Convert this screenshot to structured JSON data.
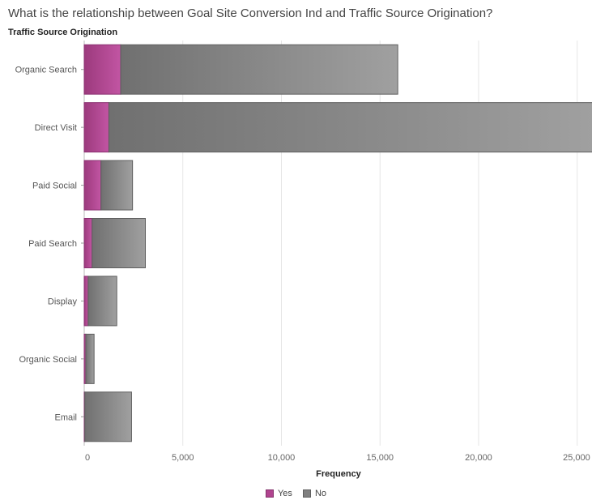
{
  "chart_data": {
    "type": "bar",
    "orientation": "horizontal",
    "stacked": true,
    "title": "What is the relationship between Goal Site Conversion Ind and Traffic Source Origination?",
    "ylabel": "Traffic Source Origination",
    "xlabel": "Frequency",
    "categories": [
      "Organic Search",
      "Direct Visit",
      "Paid Social",
      "Paid Search",
      "Display",
      "Organic Social",
      "Email"
    ],
    "series": [
      {
        "name": "Yes",
        "color": "#b0448f",
        "values": [
          1850,
          1250,
          850,
          400,
          200,
          80,
          30
        ]
      },
      {
        "name": "No",
        "color": "#808080",
        "values": [
          14050,
          24650,
          1600,
          2700,
          1450,
          420,
          2370
        ]
      }
    ],
    "xlim": [
      0,
      25750
    ],
    "xticks": [
      0,
      5000,
      10000,
      15000,
      20000,
      25000
    ],
    "xtick_labels": [
      "0",
      "5,000",
      "10,000",
      "15,000",
      "20,000",
      "25,000"
    ],
    "grid": "vertical",
    "legend_position": "bottom-center"
  }
}
